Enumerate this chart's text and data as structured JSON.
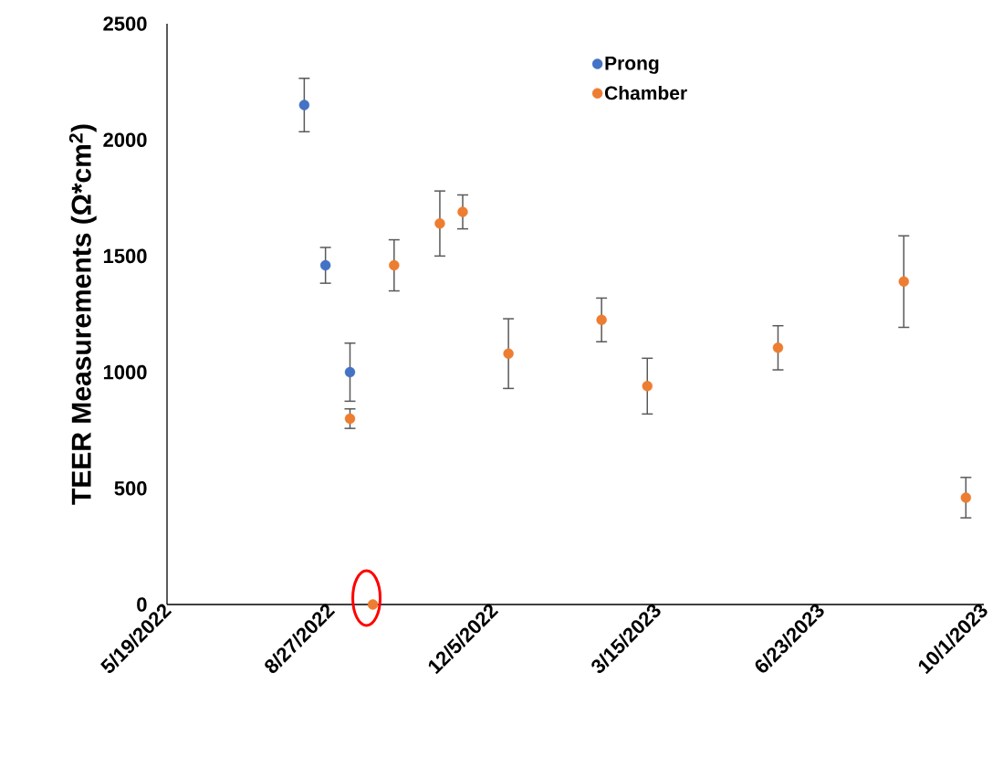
{
  "chart_data": {
    "type": "scatter",
    "ylabel": "TEER Measurements (Ω*cm$^{2}$)",
    "xlim": [
      "2022-05-19",
      "2023-10-01"
    ],
    "xticks": [
      {
        "value": "2022-05-19",
        "label": "5/19/2022"
      },
      {
        "value": "2022-08-27",
        "label": "8/27/2022"
      },
      {
        "value": "2022-12-05",
        "label": "12/5/2022"
      },
      {
        "value": "2023-03-15",
        "label": "3/15/2023"
      },
      {
        "value": "2023-06-23",
        "label": "6/23/2023"
      },
      {
        "value": "2023-10-01",
        "label": "10/1/2023"
      }
    ],
    "ylim": [
      0,
      2500
    ],
    "yticks": [
      0,
      500,
      1000,
      1500,
      2000,
      2500
    ],
    "marker": "circle",
    "legend": "top",
    "grid": false,
    "series": [
      {
        "name": "Prong",
        "color": "#4472c4",
        "x": [
          "2022-08-11",
          "2022-08-24",
          "2022-09-08"
        ],
        "values": [
          2150,
          1460,
          1000
        ],
        "errors": [
          115,
          77,
          125
        ]
      },
      {
        "name": "Chamber",
        "color": "#ed7d31",
        "x": [
          "2022-09-08",
          "2022-09-22",
          "2022-10-05",
          "2022-11-02",
          "2022-11-16",
          "2022-12-14",
          "2023-02-09",
          "2023-03-09",
          "2023-05-28",
          "2023-08-13",
          "2023-09-20"
        ],
        "values": [
          800,
          0,
          1460,
          1640,
          1690,
          1080,
          1225,
          940,
          1105,
          1390,
          460
        ],
        "errors": [
          42,
          null,
          110,
          140,
          73,
          150,
          94,
          120,
          95,
          197,
          87
        ]
      }
    ]
  }
}
